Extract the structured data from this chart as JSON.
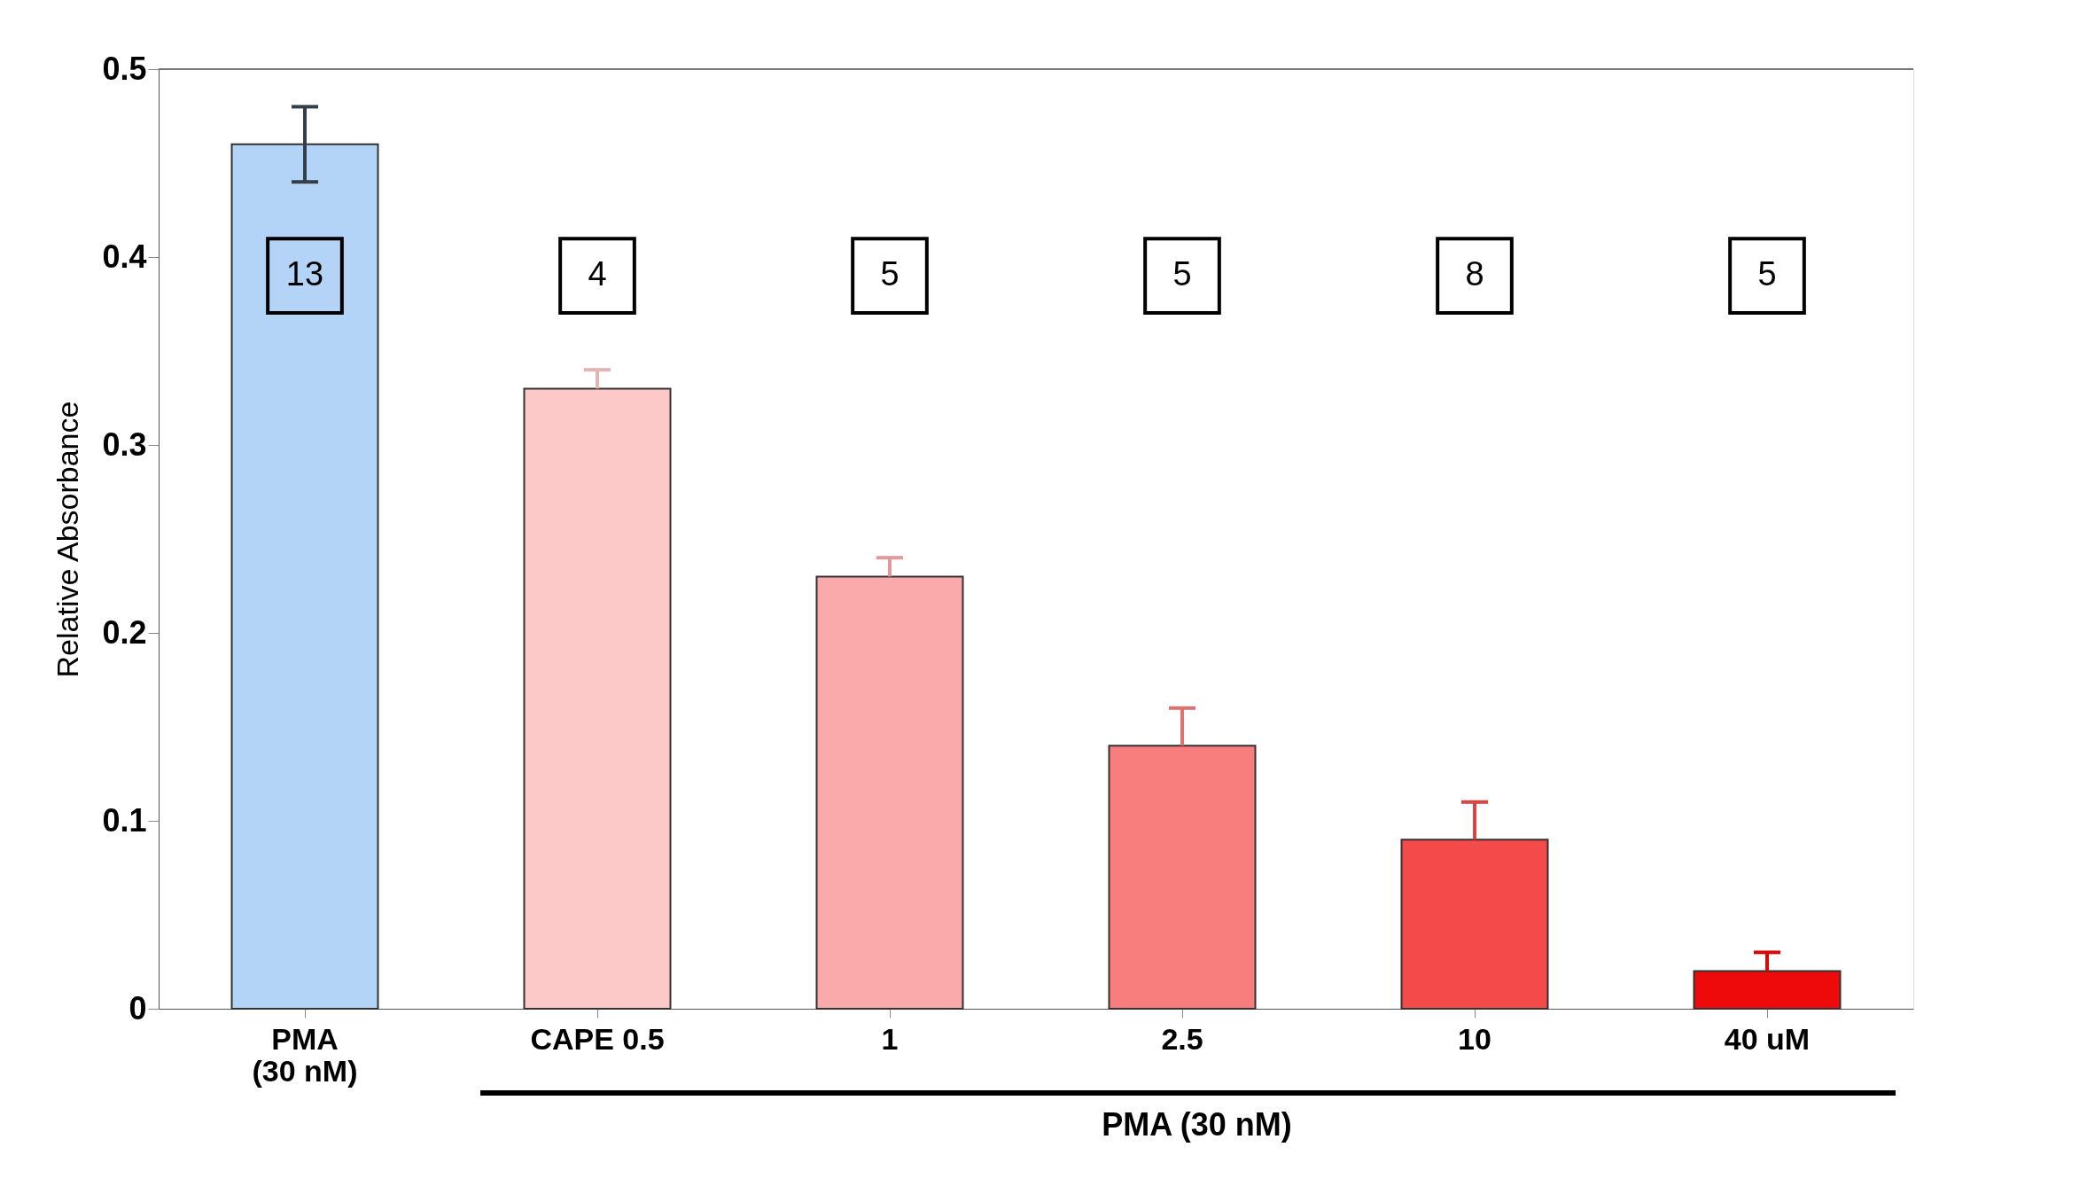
{
  "chart_data": {
    "type": "bar",
    "ylabel": "Relative Absorbance",
    "categories": [
      "PMA\n(30 nM)",
      "CAPE 0.5",
      "1",
      "2.5",
      "10",
      "40  uM"
    ],
    "values": [
      0.46,
      0.33,
      0.23,
      0.14,
      0.09,
      0.02
    ],
    "colors": [
      "#b3d4f7",
      "#fcc8c8",
      "#faaaaa",
      "#f87e7e",
      "#f44a4a",
      "#ee0a0a"
    ],
    "errors": [
      [
        0.44,
        0.48
      ],
      [
        0.33,
        0.34
      ],
      [
        0.23,
        0.24
      ],
      [
        0.14,
        0.16
      ],
      [
        0.09,
        0.11
      ],
      [
        0.02,
        0.03
      ]
    ],
    "ylim": [
      0,
      0.5
    ],
    "yticks": [
      0,
      0.1,
      0.2,
      0.3,
      0.4,
      0.5
    ],
    "grid": false,
    "annotations": [
      "13",
      "4",
      "5",
      "5",
      "8",
      "5",
      "PMA (30 nM)"
    ]
  }
}
